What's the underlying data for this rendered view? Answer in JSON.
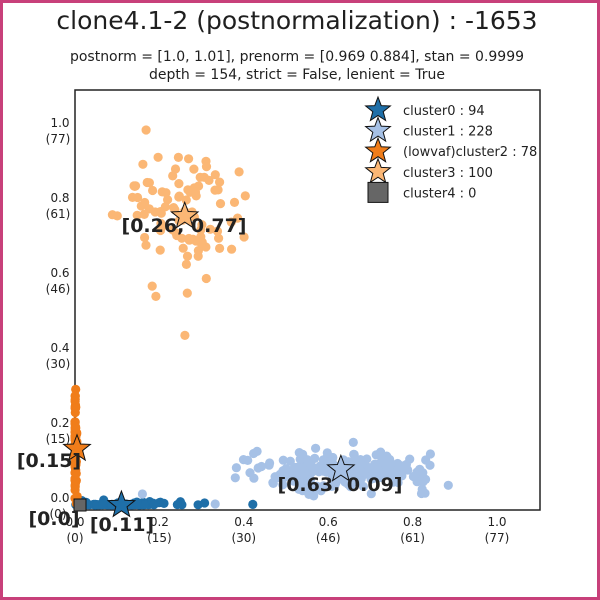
{
  "title": "clone4.1-2 (postnormalization) : -1653",
  "subtitle_line1": "postnorm = [1.0, 1.01], prenorm = [0.969 0.884], stan = 0.9999",
  "subtitle_line2": "depth = 154, strict = False, lenient = True",
  "chart_data": {
    "type": "scatter",
    "xlim": [
      0,
      1.1
    ],
    "ylim": [
      0,
      1.1
    ],
    "grid": false,
    "legend_position": "top-right",
    "x_ticks": [
      {
        "value": 0.0,
        "label": "0.0",
        "sub": "(0)"
      },
      {
        "value": 0.2,
        "label": "0.2",
        "sub": "(15)"
      },
      {
        "value": 0.4,
        "label": "0.4",
        "sub": "(30)"
      },
      {
        "value": 0.6,
        "label": "0.6",
        "sub": "(46)"
      },
      {
        "value": 0.8,
        "label": "0.8",
        "sub": "(61)"
      },
      {
        "value": 1.0,
        "label": "1.0",
        "sub": "(77)"
      }
    ],
    "y_ticks": [
      {
        "value": 0.0,
        "label": "0.0",
        "sub": "(0)"
      },
      {
        "value": 0.2,
        "label": "0.2",
        "sub": "(15)"
      },
      {
        "value": 0.4,
        "label": "0.4",
        "sub": "(30)"
      },
      {
        "value": 0.6,
        "label": "0.6",
        "sub": "(46)"
      },
      {
        "value": 0.8,
        "label": "0.8",
        "sub": "(61)"
      },
      {
        "value": 1.0,
        "label": "1.0",
        "sub": "(77)"
      }
    ],
    "series": [
      {
        "name": "cluster0",
        "count": "94",
        "legend": "cluster0 : 94",
        "color": "#1f6fa8",
        "marker": "star",
        "centroid": [
          0.11,
          0.0
        ],
        "centroid_label": "[0.11]",
        "spread": [
          0.08,
          0.004
        ]
      },
      {
        "name": "cluster1",
        "count": "228",
        "legend": "cluster1 : 228",
        "color": "#a6c1e6",
        "marker": "star",
        "centroid": [
          0.63,
          0.09
        ],
        "centroid_label": "[0.63, 0.09]",
        "spread": [
          0.11,
          0.025
        ]
      },
      {
        "name": "(lowvaf)cluster2",
        "count": "78",
        "legend": "(lowvaf)cluster2 : 78",
        "color": "#f07d1a",
        "marker": "star",
        "centroid": [
          0.0,
          0.15
        ],
        "centroid_label": "[0.15]",
        "spread": [
          0.003,
          0.07
        ]
      },
      {
        "name": "cluster3",
        "count": "100",
        "legend": "cluster3 : 100",
        "color": "#fbb775",
        "marker": "star",
        "centroid": [
          0.26,
          0.77
        ],
        "centroid_label": "[0.26, 0.77]",
        "spread": [
          0.07,
          0.1
        ]
      },
      {
        "name": "cluster4",
        "count": "0",
        "legend": "cluster4 : 0",
        "color": "#666666",
        "marker": "square",
        "centroid": [
          0.0,
          0.0
        ],
        "centroid_label": "[0.0]",
        "spread": [
          0,
          0
        ]
      }
    ]
  }
}
